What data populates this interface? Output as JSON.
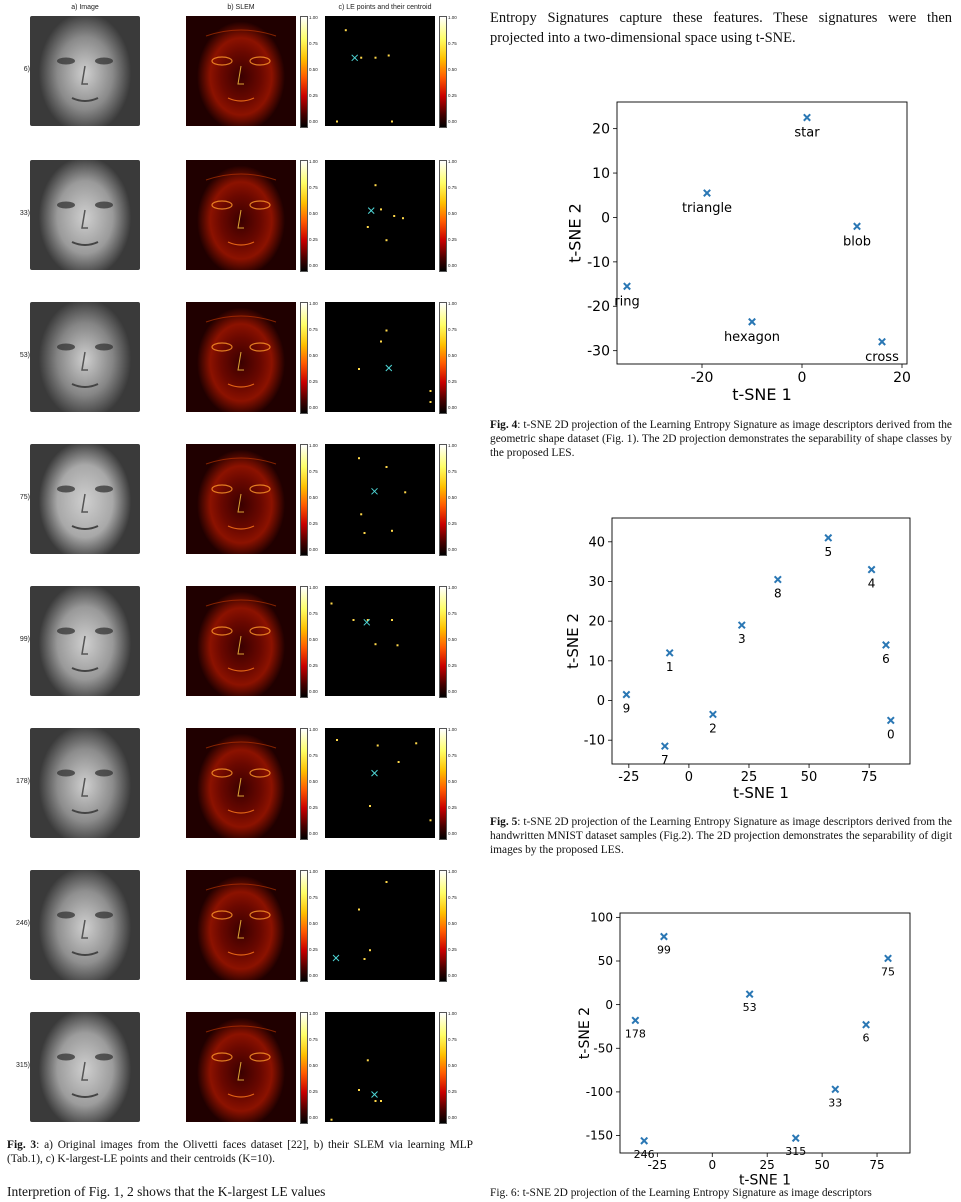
{
  "fig3": {
    "headers": [
      "a) Image",
      "b) SLEM",
      "c) LE points and their centroid"
    ],
    "colorbar_ticks": [
      "1.00",
      "0.75",
      "0.50",
      "0.25",
      "0.00"
    ],
    "rows": [
      {
        "label": "6)"
      },
      {
        "label": "33)"
      },
      {
        "label": "53)"
      },
      {
        "label": "75)"
      },
      {
        "label": "99)"
      },
      {
        "label": "178)"
      },
      {
        "label": "246)"
      },
      {
        "label": "315)"
      }
    ],
    "caption_bold": "Fig. 3",
    "caption_text": ": a) Original images from the Olivetti faces dataset [22], b) their SLEM via learning MLP (Tab.1), c) K-largest-LE points and their centroids (K=10).",
    "colors": {
      "slem_dark": "#1a0000",
      "le_background": "#000000",
      "centroid": "#4fd6d6"
    }
  },
  "left_bottom_text": "Interpretion of Fig. 1, 2 shows that the K-largest LE values",
  "intro_text": "Entropy Signatures capture these features. These signatures were then projected into a two-dimensional space using t-SNE.",
  "fig4": {
    "caption_bold": "Fig. 4",
    "caption_text": ": t-SNE 2D projection of the Learning Entropy Signature as image descriptors derived from the geometric shape dataset (Fig. 1). The 2D projection demonstrates the separability of shape classes by the proposed LES."
  },
  "fig5": {
    "caption_bold": "Fig. 5",
    "caption_text": ": t-SNE 2D projection of the Learning Entropy Signature as image descriptors derived from the handwritten MNIST dataset samples (Fig.2). The 2D projection demonstrates the separability of digit images by the proposed LES."
  },
  "fig6": {
    "caption_partial": "Fig. 6: t-SNE 2D projection of the Learning Entropy Signature as image descriptors"
  },
  "chart_data": [
    {
      "type": "scatter",
      "xlabel": "t-SNE 1",
      "ylabel": "t-SNE 2",
      "xlim": [
        -37,
        21
      ],
      "ylim": [
        -33,
        26
      ],
      "xticks": [
        -20,
        0,
        20
      ],
      "yticks": [
        20,
        10,
        0,
        -10,
        -20,
        -30
      ],
      "marker_color": "#2a77b4",
      "marker": "x",
      "points": [
        {
          "label": "star",
          "x": 1,
          "y": 22.5
        },
        {
          "label": "triangle",
          "x": -19,
          "y": 5.5
        },
        {
          "label": "blob",
          "x": 11,
          "y": -2
        },
        {
          "label": "ring",
          "x": -35,
          "y": -15.5
        },
        {
          "label": "hexagon",
          "x": -10,
          "y": -23.5
        },
        {
          "label": "cross",
          "x": 16,
          "y": -28
        }
      ]
    },
    {
      "type": "scatter",
      "xlabel": "t-SNE 1",
      "ylabel": "t-SNE 2",
      "xlim": [
        -32,
        92
      ],
      "ylim": [
        -16,
        46
      ],
      "xticks": [
        -25,
        0,
        25,
        50,
        75
      ],
      "yticks": [
        40,
        30,
        20,
        10,
        0,
        -10
      ],
      "marker_color": "#2a77b4",
      "marker": "x",
      "points": [
        {
          "label": "5",
          "x": 58,
          "y": 41
        },
        {
          "label": "4",
          "x": 76,
          "y": 33
        },
        {
          "label": "8",
          "x": 37,
          "y": 30.5
        },
        {
          "label": "3",
          "x": 22,
          "y": 19
        },
        {
          "label": "6",
          "x": 82,
          "y": 14
        },
        {
          "label": "1",
          "x": -8,
          "y": 12
        },
        {
          "label": "9",
          "x": -26,
          "y": 1.5
        },
        {
          "label": "2",
          "x": 10,
          "y": -3.5
        },
        {
          "label": "0",
          "x": 84,
          "y": -5
        },
        {
          "label": "7",
          "x": -10,
          "y": -11.5
        }
      ]
    },
    {
      "type": "scatter",
      "xlabel": "t-SNE 1",
      "ylabel": "t-SNE 2",
      "xlim": [
        -42,
        90
      ],
      "ylim": [
        -170,
        105
      ],
      "xticks": [
        -25,
        0,
        25,
        50,
        75
      ],
      "yticks": [
        100,
        50,
        0,
        -50,
        -100,
        -150
      ],
      "marker_color": "#2a77b4",
      "marker": "x",
      "points": [
        {
          "label": "99",
          "x": -22,
          "y": 78
        },
        {
          "label": "75",
          "x": 80,
          "y": 53
        },
        {
          "label": "53",
          "x": 17,
          "y": 12
        },
        {
          "label": "178",
          "x": -35,
          "y": -18
        },
        {
          "label": "6",
          "x": 70,
          "y": -23
        },
        {
          "label": "33",
          "x": 56,
          "y": -97
        },
        {
          "label": "315",
          "x": 38,
          "y": -153
        },
        {
          "label": "246",
          "x": -31,
          "y": -156
        }
      ]
    }
  ]
}
